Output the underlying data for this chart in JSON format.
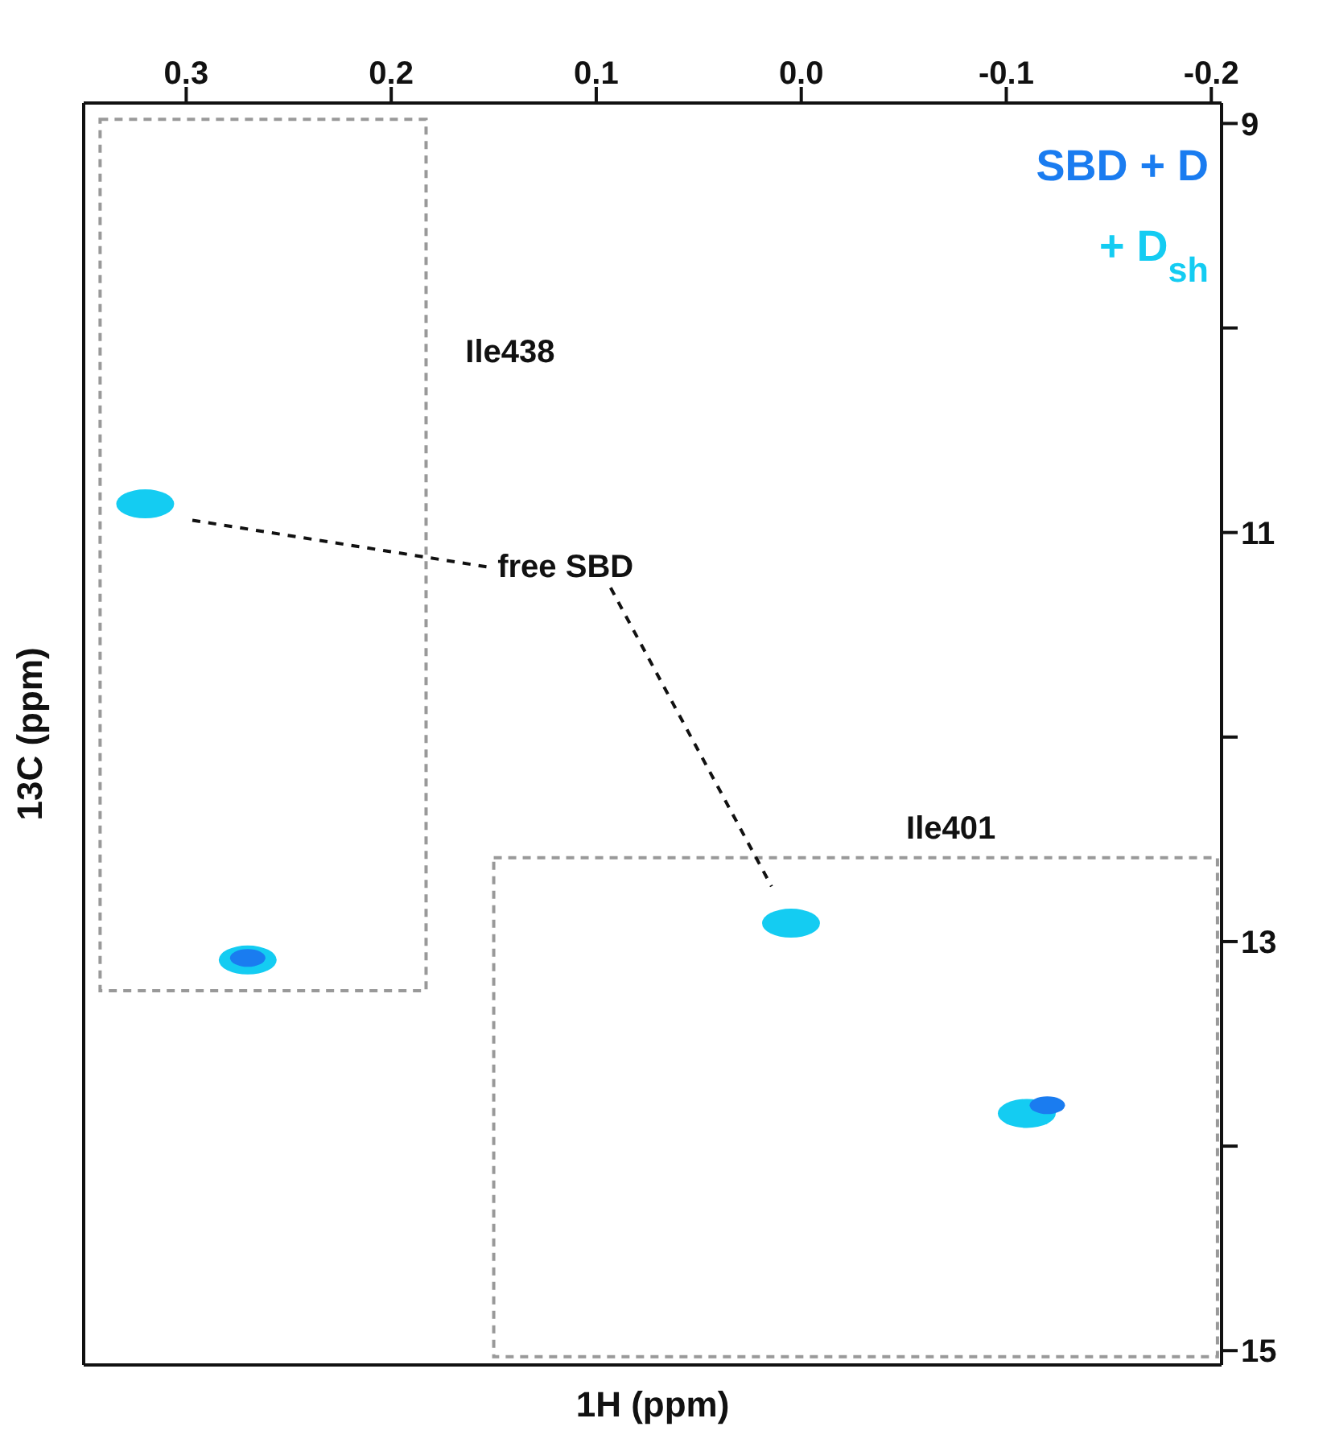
{
  "chart_data": {
    "type": "scatter",
    "xlabel": "1H (ppm)",
    "ylabel": "13C (ppm)",
    "xlim": [
      0.35,
      -0.205
    ],
    "xticks": [
      0.3,
      0.2,
      0.1,
      {
        "value": 0,
        "label": "0.0"
      },
      -0.1,
      -0.2
    ],
    "ylim": [
      15.07,
      8.9
    ],
    "yticks": [
      9,
      {
        "value": 10,
        "label": null
      },
      11,
      {
        "value": 12,
        "label": null
      },
      13,
      {
        "value": 14,
        "label": null
      },
      15
    ],
    "legend": "top right",
    "marker": "circle",
    "series": [
      {
        "name": "SBD + D",
        "color": "#1a7cf0",
        "x": [
          0.27,
          -0.12
        ],
        "values": [
          13.08,
          13.8
        ]
      },
      {
        "name": "+ D$_{sh}$",
        "color": "#14ccf2",
        "x": [
          0.32,
          0.27,
          0.005,
          -0.11
        ],
        "values": [
          10.86,
          13.09,
          12.91,
          13.84
        ]
      }
    ],
    "annotations": [
      "Ile438",
      "Ile401",
      "free SBD"
    ]
  }
}
